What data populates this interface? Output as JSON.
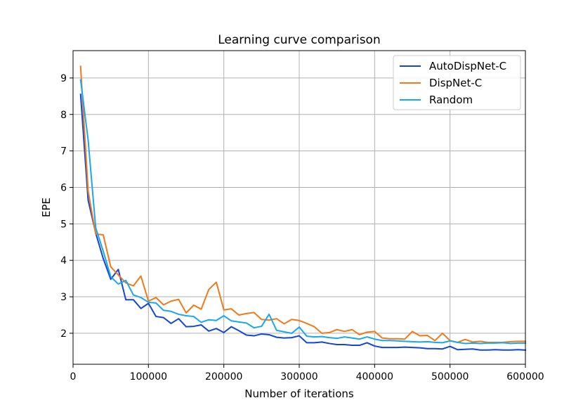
{
  "chart_data": {
    "type": "line",
    "title": "Learning curve comparison",
    "xlabel": "Number of iterations",
    "ylabel": "EPE",
    "xlim": [
      0,
      600000
    ],
    "ylim": [
      1.15,
      9.75
    ],
    "xticks": [
      0,
      100000,
      200000,
      300000,
      400000,
      500000,
      600000
    ],
    "xtick_labels": [
      "0",
      "100000",
      "200000",
      "300000",
      "400000",
      "500000",
      "600000"
    ],
    "yticks": [
      2,
      3,
      4,
      5,
      6,
      7,
      8,
      9
    ],
    "ytick_labels": [
      "2",
      "3",
      "4",
      "5",
      "6",
      "7",
      "8",
      "9"
    ],
    "grid": true,
    "legend_position": "top-right",
    "x": [
      10000,
      20000,
      30000,
      40000,
      50000,
      60000,
      70000,
      80000,
      90000,
      100000,
      110000,
      120000,
      130000,
      140000,
      150000,
      160000,
      170000,
      180000,
      190000,
      200000,
      210000,
      220000,
      230000,
      240000,
      250000,
      260000,
      270000,
      280000,
      290000,
      300000,
      310000,
      320000,
      330000,
      340000,
      350000,
      360000,
      370000,
      380000,
      390000,
      400000,
      410000,
      420000,
      430000,
      440000,
      450000,
      460000,
      470000,
      480000,
      490000,
      500000,
      510000,
      520000,
      530000,
      540000,
      550000,
      560000,
      570000,
      580000,
      590000,
      600000
    ],
    "series": [
      {
        "name": "AutoDispNet-C",
        "color": "#1245d8",
        "values": [
          8.55,
          5.65,
          4.75,
          4.05,
          3.48,
          3.75,
          2.92,
          2.92,
          2.68,
          2.82,
          2.46,
          2.43,
          2.27,
          2.4,
          2.18,
          2.19,
          2.23,
          2.06,
          2.13,
          2.02,
          2.18,
          2.07,
          1.95,
          1.93,
          1.98,
          1.96,
          1.89,
          1.87,
          1.88,
          1.93,
          1.74,
          1.74,
          1.76,
          1.72,
          1.69,
          1.69,
          1.67,
          1.67,
          1.74,
          1.65,
          1.61,
          1.61,
          1.61,
          1.62,
          1.61,
          1.6,
          1.58,
          1.58,
          1.57,
          1.64,
          1.55,
          1.56,
          1.57,
          1.54,
          1.54,
          1.55,
          1.54,
          1.54,
          1.55,
          1.54
        ]
      },
      {
        "name": "DispNet-C",
        "color": "#f07a18",
        "values": [
          9.32,
          5.9,
          4.72,
          4.7,
          3.82,
          3.6,
          3.38,
          3.3,
          3.57,
          2.88,
          2.98,
          2.78,
          2.88,
          2.93,
          2.56,
          2.77,
          2.66,
          3.2,
          3.4,
          2.64,
          2.67,
          2.5,
          2.54,
          2.57,
          2.38,
          2.36,
          2.4,
          2.26,
          2.38,
          2.35,
          2.27,
          2.18,
          2.0,
          2.02,
          2.1,
          2.05,
          2.1,
          1.96,
          2.03,
          2.05,
          1.87,
          1.85,
          1.85,
          1.84,
          2.05,
          1.93,
          1.94,
          1.8,
          2.0,
          1.8,
          1.75,
          1.83,
          1.76,
          1.78,
          1.75,
          1.75,
          1.75,
          1.77,
          1.78,
          1.78
        ]
      },
      {
        "name": "Random",
        "color": "#18a8f0",
        "values": [
          8.95,
          7.3,
          4.9,
          4.25,
          3.55,
          3.35,
          3.45,
          3.05,
          2.98,
          2.85,
          2.83,
          2.63,
          2.6,
          2.52,
          2.48,
          2.46,
          2.3,
          2.37,
          2.35,
          2.48,
          2.34,
          2.31,
          2.28,
          2.15,
          2.19,
          2.52,
          2.08,
          2.04,
          2.0,
          2.17,
          1.92,
          1.9,
          1.91,
          1.88,
          1.86,
          1.9,
          1.87,
          1.84,
          1.9,
          1.84,
          1.8,
          1.8,
          1.79,
          1.78,
          1.77,
          1.76,
          1.77,
          1.75,
          1.74,
          1.79,
          1.75,
          1.72,
          1.73,
          1.72,
          1.73,
          1.73,
          1.74,
          1.72,
          1.73,
          1.73
        ]
      }
    ]
  }
}
